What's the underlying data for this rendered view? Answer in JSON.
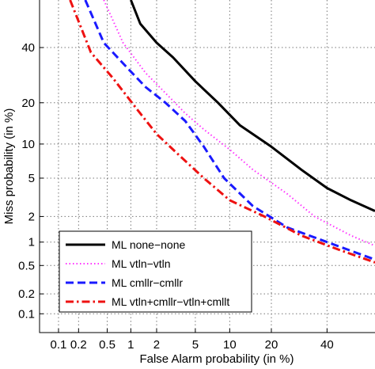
{
  "chart_data": {
    "type": "line",
    "title": "",
    "xlabel": "False Alarm probability (in %)",
    "ylabel": "Miss probability (in %)",
    "scale": "normal-deviate (DET)",
    "xlim": [
      0.05,
      60
    ],
    "ylim": [
      0.05,
      60
    ],
    "xticks": [
      0.1,
      0.2,
      0.5,
      1,
      2,
      5,
      10,
      20,
      40
    ],
    "xtick_labels": [
      "0.1",
      "0.2",
      "0.5",
      "1",
      "2",
      "5",
      "10",
      "20",
      "40"
    ],
    "yticks": [
      0.1,
      0.2,
      0.5,
      1,
      2,
      5,
      10,
      20,
      40
    ],
    "ytick_labels": [
      "0.1",
      "0.2",
      "0.5",
      "1",
      "2",
      "5",
      "10",
      "20",
      "40"
    ],
    "grid": true,
    "legend_position": "bottom-left",
    "series": [
      {
        "name": "ML none−none",
        "color": "#000000",
        "style": "solid",
        "points": [
          [
            1.0,
            60
          ],
          [
            1.3,
            50
          ],
          [
            2.0,
            42
          ],
          [
            3.0,
            36
          ],
          [
            5.0,
            27
          ],
          [
            8.0,
            20
          ],
          [
            12.0,
            14
          ],
          [
            20.0,
            9.5
          ],
          [
            30.0,
            6.0
          ],
          [
            40.0,
            4.0
          ],
          [
            50.0,
            3.0
          ],
          [
            60.0,
            2.3
          ]
        ]
      },
      {
        "name": "ML vtln−vtln",
        "color": "#ff33ff",
        "style": "dotted",
        "points": [
          [
            0.45,
            60
          ],
          [
            0.8,
            42
          ],
          [
            1.5,
            30
          ],
          [
            2.5,
            23
          ],
          [
            4.0,
            17
          ],
          [
            6.0,
            13
          ],
          [
            10.0,
            9.0
          ],
          [
            15.0,
            6.0
          ],
          [
            25.0,
            3.5
          ],
          [
            35.0,
            2.0
          ],
          [
            50.0,
            1.2
          ],
          [
            60.0,
            0.9
          ]
        ]
      },
      {
        "name": "ML cmllr−cmllr",
        "color": "#1a1aff",
        "style": "dashed",
        "points": [
          [
            0.25,
            60
          ],
          [
            0.45,
            42
          ],
          [
            0.9,
            32
          ],
          [
            1.5,
            25
          ],
          [
            2.5,
            20
          ],
          [
            4.0,
            15
          ],
          [
            6.0,
            9.5
          ],
          [
            9.0,
            5.0
          ],
          [
            15.0,
            2.6
          ],
          [
            25.0,
            1.5
          ],
          [
            40.0,
            1.0
          ],
          [
            60.0,
            0.6
          ]
        ]
      },
      {
        "name": "ML vtln+cmllr−vtln+cmllt",
        "color": "#ee1111",
        "style": "dashdot",
        "points": [
          [
            0.15,
            60
          ],
          [
            0.3,
            38
          ],
          [
            0.6,
            28
          ],
          [
            1.2,
            18
          ],
          [
            2.0,
            12
          ],
          [
            3.5,
            8.0
          ],
          [
            6.0,
            5.0
          ],
          [
            10.0,
            3.0
          ],
          [
            18.0,
            2.0
          ],
          [
            30.0,
            1.2
          ],
          [
            45.0,
            0.8
          ],
          [
            60.0,
            0.55
          ]
        ]
      }
    ]
  }
}
